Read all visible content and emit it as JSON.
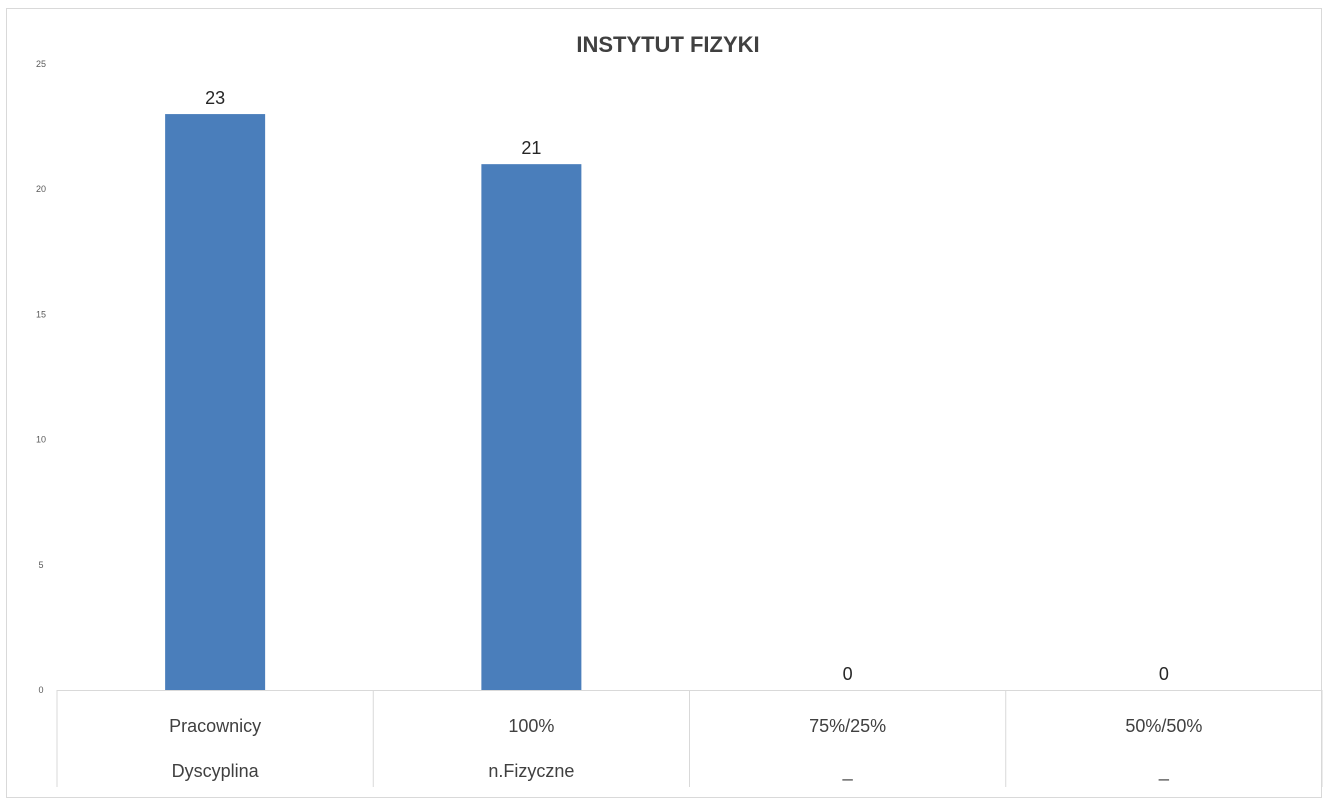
{
  "chart_data": {
    "type": "bar",
    "title": "INSTYTUT FIZYKI",
    "xlabel": "",
    "ylabel": "",
    "ylim": [
      0,
      25
    ],
    "yticks": [
      0,
      5,
      10,
      15,
      20,
      25
    ],
    "categories": [
      {
        "line1": "Pracownicy",
        "line2": "Dyscyplina"
      },
      {
        "line1": "100%",
        "line2": "n.Fizyczne"
      },
      {
        "line1": "75%/25%",
        "line2": "_"
      },
      {
        "line1": "50%/50%",
        "line2": "_"
      }
    ],
    "values": [
      23,
      21,
      0,
      0
    ],
    "data_labels": [
      "23",
      "21",
      "0",
      "0"
    ],
    "bar_color": "#4a7ebb",
    "grid": false,
    "legend": "none"
  }
}
